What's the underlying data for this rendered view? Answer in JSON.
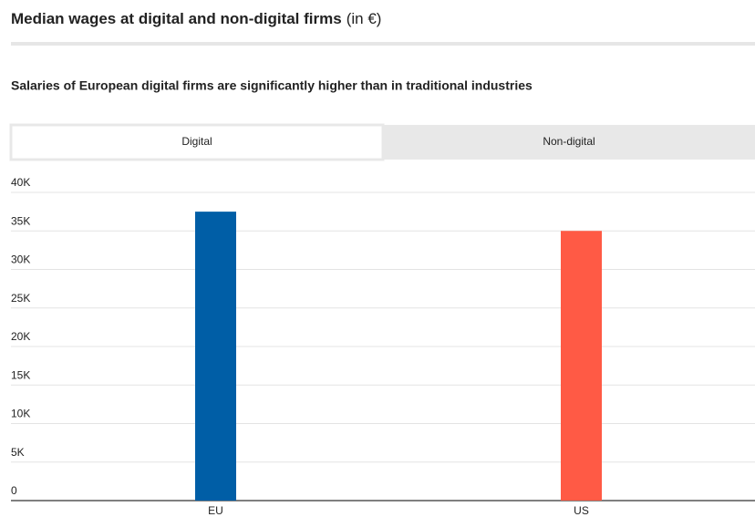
{
  "chart_data": {
    "type": "bar",
    "title": "Median wages at digital and non-digital firms",
    "title_unit": "(in €)",
    "subtitle": "Salaries of European digital firms are significantly higher than in traditional industries",
    "tabs": [
      "Digital",
      "Non-digital"
    ],
    "active_tab": 0,
    "categories": [
      "EU",
      "US"
    ],
    "values": [
      37500,
      35000
    ],
    "colors": [
      "#005ea6",
      "#ff5a45"
    ],
    "ylim": [
      0,
      40000
    ],
    "yticks": [
      0,
      {
        "value": 5000,
        "label": "5K"
      },
      {
        "value": 10000,
        "label": "10K"
      },
      {
        "value": 15000,
        "label": "15K"
      },
      {
        "value": 20000,
        "label": "20K"
      },
      {
        "value": 25000,
        "label": "25K"
      },
      {
        "value": 30000,
        "label": "30K"
      },
      {
        "value": 35000,
        "label": "35K"
      },
      {
        "value": 40000,
        "label": "40K"
      }
    ],
    "grid": true
  }
}
